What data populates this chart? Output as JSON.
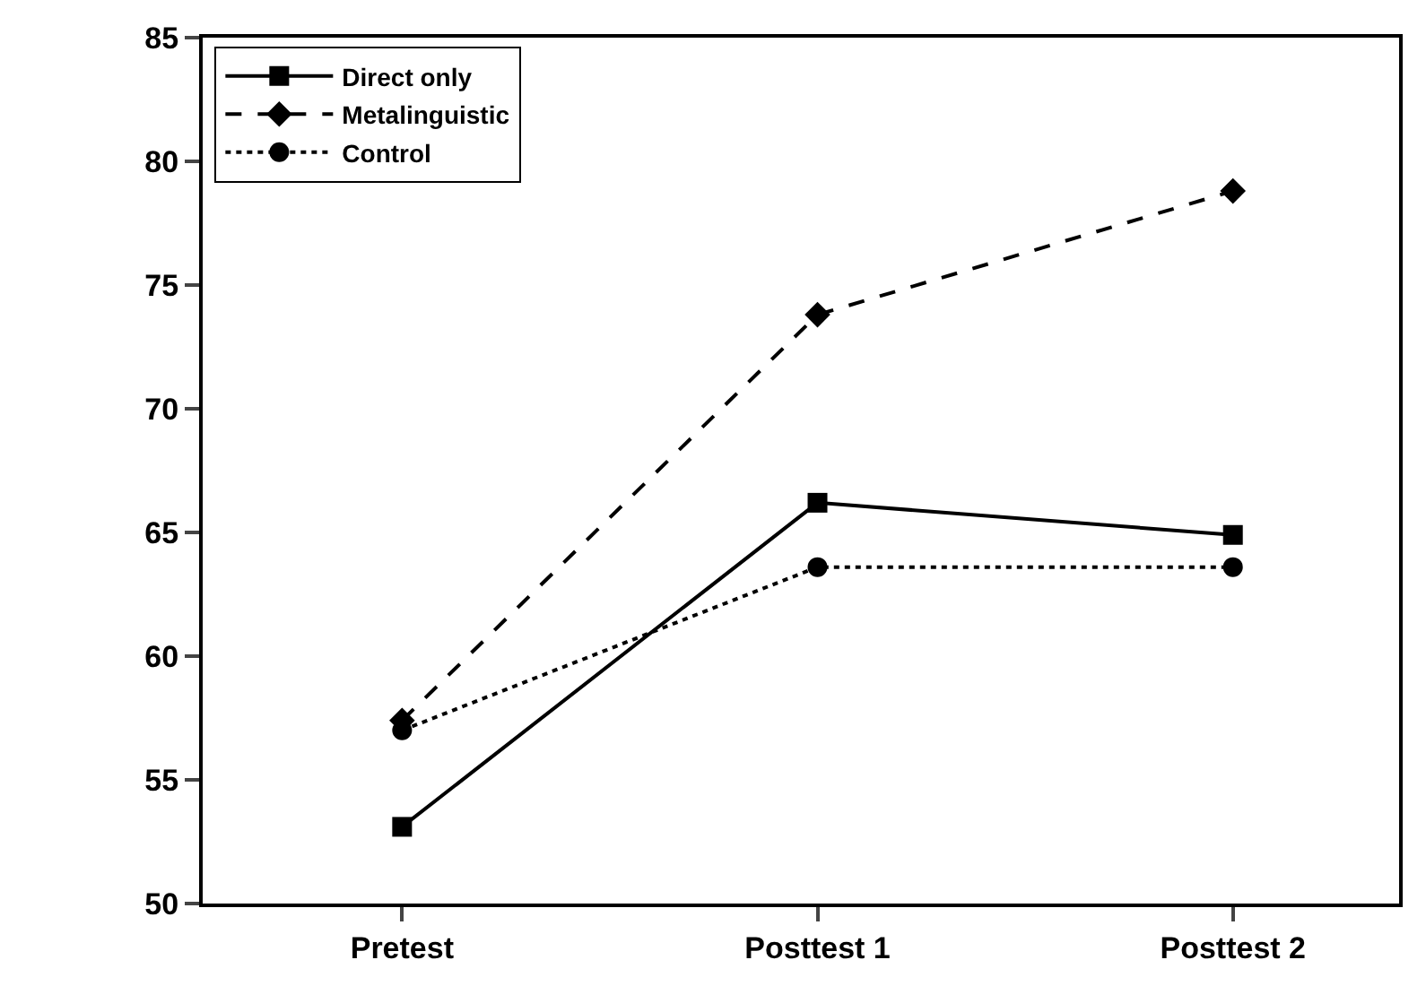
{
  "chart_data": {
    "type": "line",
    "categories": [
      "Pretest",
      "Posttest 1",
      "Posttest 2"
    ],
    "series": [
      {
        "name": "Direct only",
        "color": "#000000",
        "values": [
          53.1,
          66.2,
          64.9
        ],
        "marker": "square",
        "line_style": "solid"
      },
      {
        "name": "Metalinguistic",
        "color": "#000000",
        "values": [
          57.4,
          73.8,
          78.8
        ],
        "marker": "diamond",
        "line_style": "dashed"
      },
      {
        "name": "Control",
        "color": "#000000",
        "values": [
          57.0,
          63.6,
          63.6
        ],
        "marker": "circle",
        "line_style": "dotted"
      }
    ],
    "ylim": [
      50,
      85
    ],
    "yticks": [
      50,
      55,
      60,
      65,
      70,
      75,
      80,
      85
    ],
    "legend": "top left"
  }
}
